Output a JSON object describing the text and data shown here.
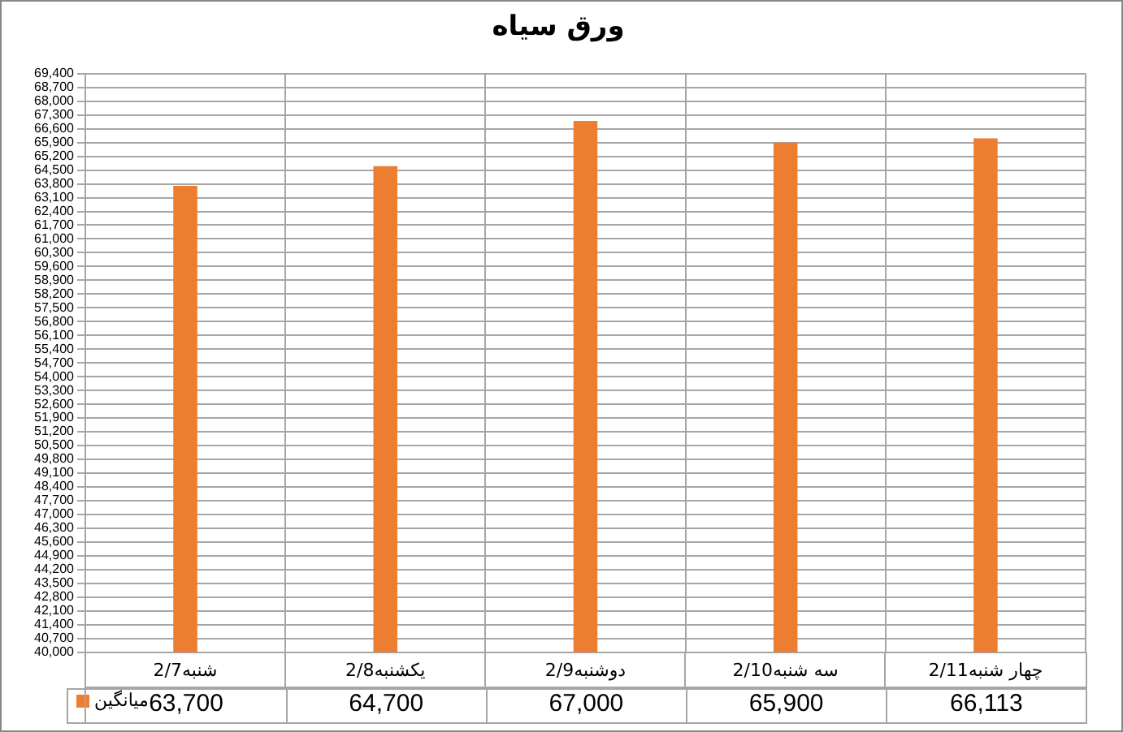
{
  "chart_data": {
    "type": "bar",
    "title": "ورق سیاه",
    "categories": [
      "شنبه2/7",
      "یکشنبه2/8",
      "دوشنبه2/9",
      "سه شنبه2/10",
      "چهار شنبه2/11"
    ],
    "series": [
      {
        "name": "میانگین",
        "color": "#ed7d31",
        "values": [
          63700,
          64700,
          67000,
          65900,
          66113
        ],
        "value_labels": [
          "63,700",
          "64,700",
          "67,000",
          "65,900",
          "66,113"
        ]
      }
    ],
    "ylim": [
      40000,
      69400
    ],
    "yticks": [
      {
        "value": 40000,
        "label": "40,000"
      },
      {
        "value": 40700,
        "label": "40,700"
      },
      {
        "value": 41400,
        "label": "41,400"
      },
      {
        "value": 42100,
        "label": "42,100"
      },
      {
        "value": 42800,
        "label": "42,800"
      },
      {
        "value": 43500,
        "label": "43,500"
      },
      {
        "value": 44200,
        "label": "44,200"
      },
      {
        "value": 44900,
        "label": "44,900"
      },
      {
        "value": 45600,
        "label": "45,600"
      },
      {
        "value": 46300,
        "label": "46,300"
      },
      {
        "value": 47000,
        "label": "47,000"
      },
      {
        "value": 47700,
        "label": "47,700"
      },
      {
        "value": 48400,
        "label": "48,400"
      },
      {
        "value": 49100,
        "label": "49,100"
      },
      {
        "value": 49800,
        "label": "49,800"
      },
      {
        "value": 50500,
        "label": "50,500"
      },
      {
        "value": 51200,
        "label": "51,200"
      },
      {
        "value": 51900,
        "label": "51,900"
      },
      {
        "value": 52600,
        "label": "52,600"
      },
      {
        "value": 53300,
        "label": "53,300"
      },
      {
        "value": 54000,
        "label": "54,000"
      },
      {
        "value": 54700,
        "label": "54,700"
      },
      {
        "value": 55400,
        "label": "55,400"
      },
      {
        "value": 56100,
        "label": "56,100"
      },
      {
        "value": 56800,
        "label": "56,800"
      },
      {
        "value": 57500,
        "label": "57,500"
      },
      {
        "value": 58200,
        "label": "58,200"
      },
      {
        "value": 58900,
        "label": "58,900"
      },
      {
        "value": 59600,
        "label": "59,600"
      },
      {
        "value": 60300,
        "label": "60,300"
      },
      {
        "value": 61000,
        "label": "61,000"
      },
      {
        "value": 61700,
        "label": "61,700"
      },
      {
        "value": 62400,
        "label": "62,400"
      },
      {
        "value": 63100,
        "label": "63,100"
      },
      {
        "value": 63800,
        "label": "63,800"
      },
      {
        "value": 64500,
        "label": "64,500"
      },
      {
        "value": 65200,
        "label": "65,200"
      },
      {
        "value": 65900,
        "label": "65,900"
      },
      {
        "value": 66600,
        "label": "66,600"
      },
      {
        "value": 67300,
        "label": "67,300"
      },
      {
        "value": 68000,
        "label": "68,000"
      },
      {
        "value": 68700,
        "label": "68,700"
      },
      {
        "value": 69400,
        "label": "69,400"
      }
    ],
    "grid": true,
    "legend": "bottom",
    "data_labels": true
  }
}
